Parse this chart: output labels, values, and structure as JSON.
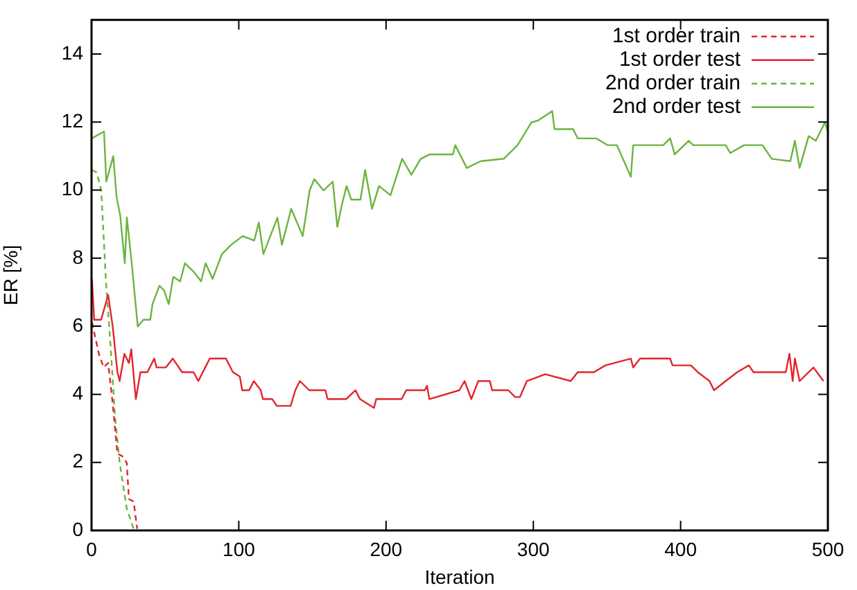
{
  "chart_data": {
    "type": "line",
    "xlabel": "Iteration",
    "ylabel": "ER [%]",
    "xlim": [
      0,
      500
    ],
    "ylim": [
      0,
      15
    ],
    "xticks": [
      0,
      100,
      200,
      300,
      400,
      500
    ],
    "yticks": [
      0,
      2,
      4,
      6,
      8,
      10,
      12,
      14
    ],
    "legend": "top right",
    "marker": "none",
    "series": [
      {
        "name": "1st order train",
        "color": "#e3242b",
        "line_style": "dashed",
        "x": [
          0.3,
          5,
          8.2,
          11.3,
          14.4,
          17.6,
          20.7,
          23.9,
          25.4,
          28.6,
          31
        ],
        "values": [
          6.12,
          5.19,
          4.79,
          4.92,
          3.72,
          2.25,
          2.19,
          1.99,
          0.92,
          0.85,
          0.05
        ]
      },
      {
        "name": "1st order test",
        "color": "#e3242b",
        "line_style": "solid",
        "x": [
          0.3,
          1.8,
          6.5,
          11.3,
          14.4,
          17.6,
          19.1,
          22.3,
          25.4,
          27,
          30.1,
          33.2,
          37.9,
          42.6,
          44.2,
          50.5,
          55.2,
          61.5,
          69.3,
          72.5,
          77.2,
          80.3,
          91.3,
          96,
          100.7,
          102.3,
          107,
          110.2,
          114.9,
          116.4,
          122.7,
          125.8,
          135.2,
          138.4,
          141.5,
          147.8,
          158.8,
          160.3,
          172.9,
          179.2,
          182.3,
          191.8,
          193.3,
          210.6,
          213.7,
          226.3,
          227.8,
          229.4,
          249.8,
          253.3,
          257.9,
          262.6,
          270.5,
          272,
          283,
          287.7,
          290.9,
          295.6,
          308.1,
          325.4,
          330.1,
          341.1,
          348.9,
          366.2,
          367.8,
          372.5,
          392.9,
          394.5,
          407,
          411.7,
          419.6,
          422.7,
          430.6,
          438.4,
          446.3,
          449.5,
          471.4,
          473.9,
          476.1,
          477.6,
          480.8,
          490.2,
          497
        ],
        "values": [
          7.39,
          6.19,
          6.19,
          6.92,
          5.99,
          4.65,
          4.39,
          5.19,
          4.92,
          5.32,
          3.86,
          4.65,
          4.65,
          5.05,
          4.79,
          4.79,
          5.05,
          4.65,
          4.65,
          4.39,
          4.79,
          5.05,
          5.05,
          4.65,
          4.52,
          4.12,
          4.12,
          4.39,
          4.12,
          3.86,
          3.86,
          3.66,
          3.66,
          4.12,
          4.39,
          4.12,
          4.12,
          3.86,
          3.86,
          4.12,
          3.86,
          3.6,
          3.86,
          3.86,
          4.12,
          4.12,
          4.25,
          3.86,
          4.12,
          4.39,
          3.86,
          4.39,
          4.39,
          4.12,
          4.12,
          3.92,
          3.92,
          4.39,
          4.59,
          4.39,
          4.65,
          4.65,
          4.85,
          5.05,
          4.79,
          5.05,
          5.05,
          4.85,
          4.85,
          4.65,
          4.39,
          4.12,
          4.39,
          4.65,
          4.85,
          4.65,
          4.65,
          5.19,
          4.39,
          5.05,
          4.39,
          4.79,
          4.39
        ]
      },
      {
        "name": "2nd order train",
        "color": "#6ab43e",
        "line_style": "dashed",
        "x": [
          0.3,
          3.5,
          6.6,
          9.8,
          12.9,
          16,
          19.1,
          23.9,
          27,
          28.6
        ],
        "values": [
          10.59,
          10.52,
          9.99,
          7.32,
          5.45,
          3.32,
          1.99,
          0.65,
          0.25,
          0.05
        ]
      },
      {
        "name": "2nd order test",
        "color": "#6ab43e",
        "line_style": "solid",
        "x": [
          0,
          8.5,
          10,
          14.8,
          17,
          19.5,
          22.6,
          24,
          27.3,
          31.4,
          35.2,
          39.9,
          41.4,
          46.1,
          49.3,
          52.4,
          55.5,
          60.2,
          63.4,
          69.6,
          74.4,
          77.5,
          82.2,
          88.5,
          94.8,
          102.6,
          110.5,
          113.6,
          116.7,
          126.2,
          129.3,
          135.6,
          143.4,
          148.1,
          151.3,
          157.5,
          163.8,
          166.9,
          170.1,
          173.2,
          176.4,
          182.6,
          185.8,
          190.5,
          195.2,
          203,
          210.9,
          217.2,
          223.5,
          229.7,
          245.4,
          247,
          254.8,
          264.2,
          279.9,
          289.3,
          298.7,
          303.4,
          312.8,
          314.4,
          327,
          330.1,
          342.7,
          350.5,
          356.8,
          366.2,
          367.8,
          380.3,
          388.2,
          392.9,
          396,
          405.5,
          408.6,
          430.6,
          433.7,
          443.1,
          455.6,
          461.9,
          474.5,
          477.6,
          480.8,
          487,
          491.8,
          498,
          500
        ],
        "values": [
          11.52,
          11.72,
          10.25,
          11.0,
          9.8,
          9.25,
          7.85,
          9.2,
          7.85,
          5.99,
          6.19,
          6.19,
          6.65,
          7.19,
          7.05,
          6.65,
          7.45,
          7.32,
          7.85,
          7.59,
          7.32,
          7.85,
          7.39,
          8.12,
          8.39,
          8.65,
          8.52,
          9.05,
          8.12,
          9.19,
          8.39,
          9.45,
          8.65,
          9.99,
          10.32,
          9.99,
          10.25,
          8.92,
          9.59,
          10.12,
          9.72,
          9.72,
          10.59,
          9.45,
          10.12,
          9.85,
          10.92,
          10.45,
          10.92,
          11.05,
          11.05,
          11.32,
          10.65,
          10.85,
          10.92,
          11.32,
          11.99,
          12.05,
          12.32,
          11.79,
          11.79,
          11.52,
          11.52,
          11.32,
          11.32,
          10.39,
          11.32,
          11.32,
          11.32,
          11.52,
          11.05,
          11.45,
          11.32,
          11.32,
          11.09,
          11.32,
          11.32,
          10.92,
          10.85,
          11.45,
          10.65,
          11.59,
          11.45,
          11.99,
          11.72
        ]
      }
    ]
  }
}
